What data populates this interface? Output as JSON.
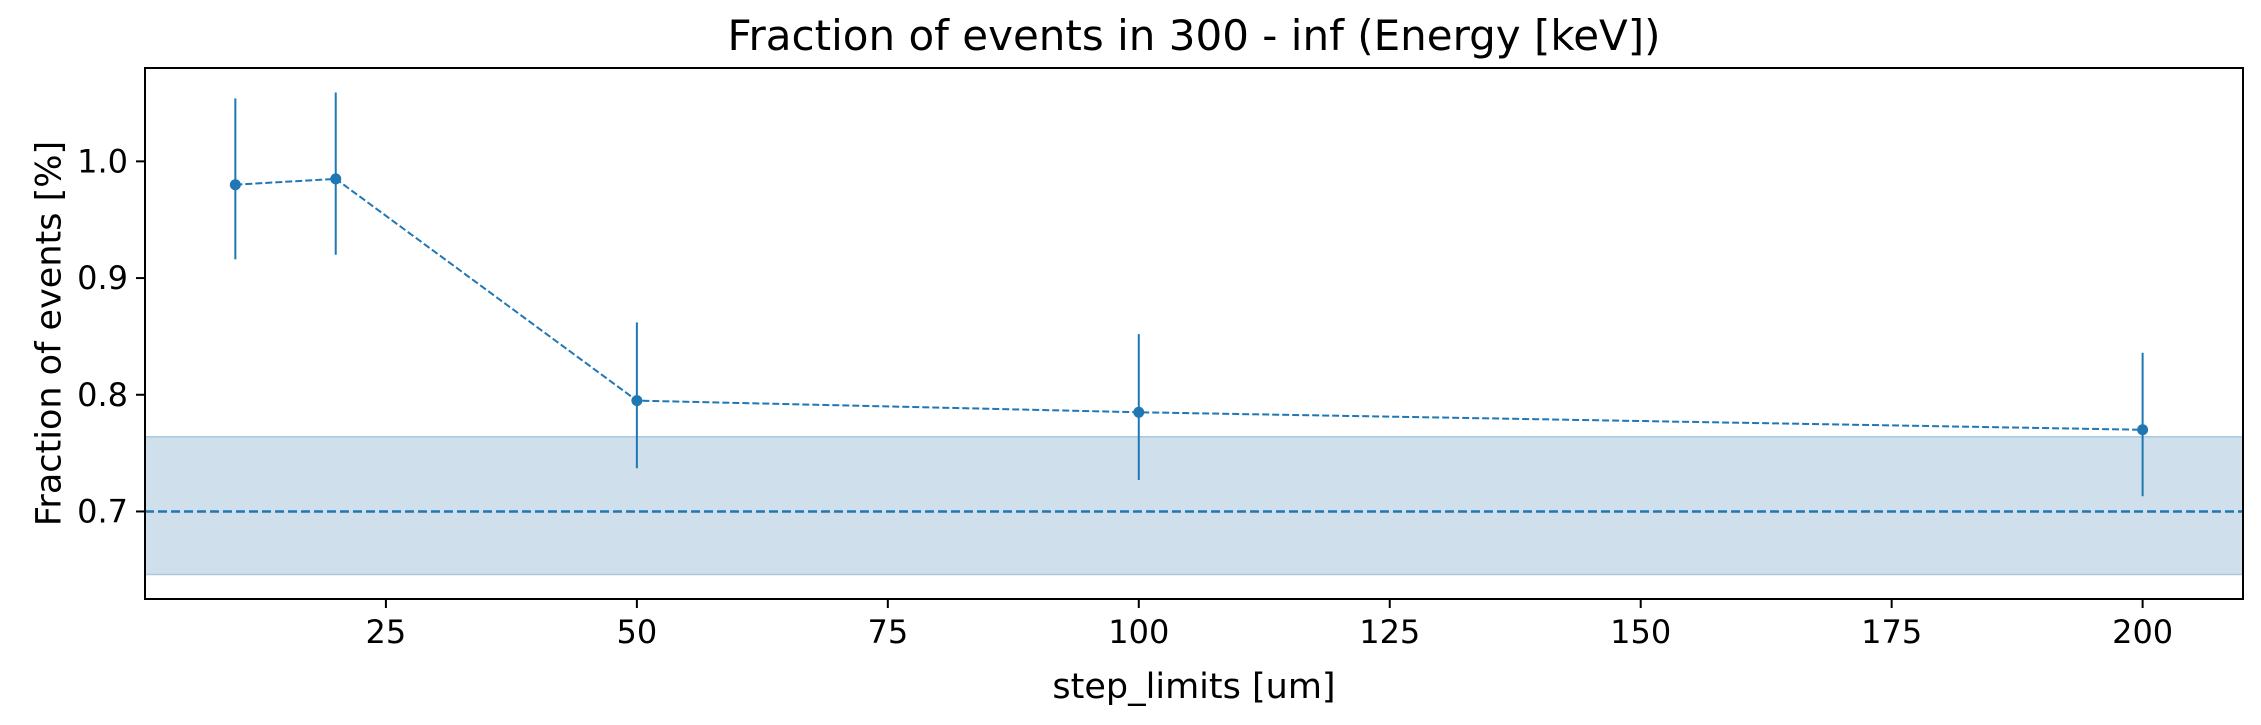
{
  "chart_data": {
    "type": "line",
    "title": "Fraction of events in 300 - inf (Energy [keV])",
    "xlabel": "step_limits [um]",
    "ylabel": "Fraction of events [%]",
    "xlim": [
      1,
      210
    ],
    "ylim": [
      0.625,
      1.08
    ],
    "xticks": [
      25,
      50,
      75,
      100,
      125,
      150,
      175,
      200
    ],
    "yticks": [
      0.7,
      0.8,
      0.9,
      1.0
    ],
    "xtick_labels": [
      "25",
      "50",
      "75",
      "100",
      "125",
      "150",
      "175",
      "200"
    ],
    "ytick_labels": [
      "0.7",
      "0.8",
      "0.9",
      "1.0"
    ],
    "grid": false,
    "series": [
      {
        "x": [
          10,
          20,
          50,
          100,
          200
        ],
        "y": [
          0.98,
          0.985,
          0.795,
          0.785,
          0.77
        ],
        "yerr_low": [
          0.916,
          0.92,
          0.737,
          0.727,
          0.713
        ],
        "yerr_high": [
          1.054,
          1.059,
          0.862,
          0.852,
          0.836
        ],
        "color": "#1f77b4",
        "linestyle": "dashed",
        "marker": "circle"
      }
    ],
    "reference": {
      "y": 0.7,
      "band": [
        0.646,
        0.764
      ],
      "color": "#1f77b4",
      "band_color": "#cfe0ec",
      "linestyle": "dashed"
    }
  }
}
